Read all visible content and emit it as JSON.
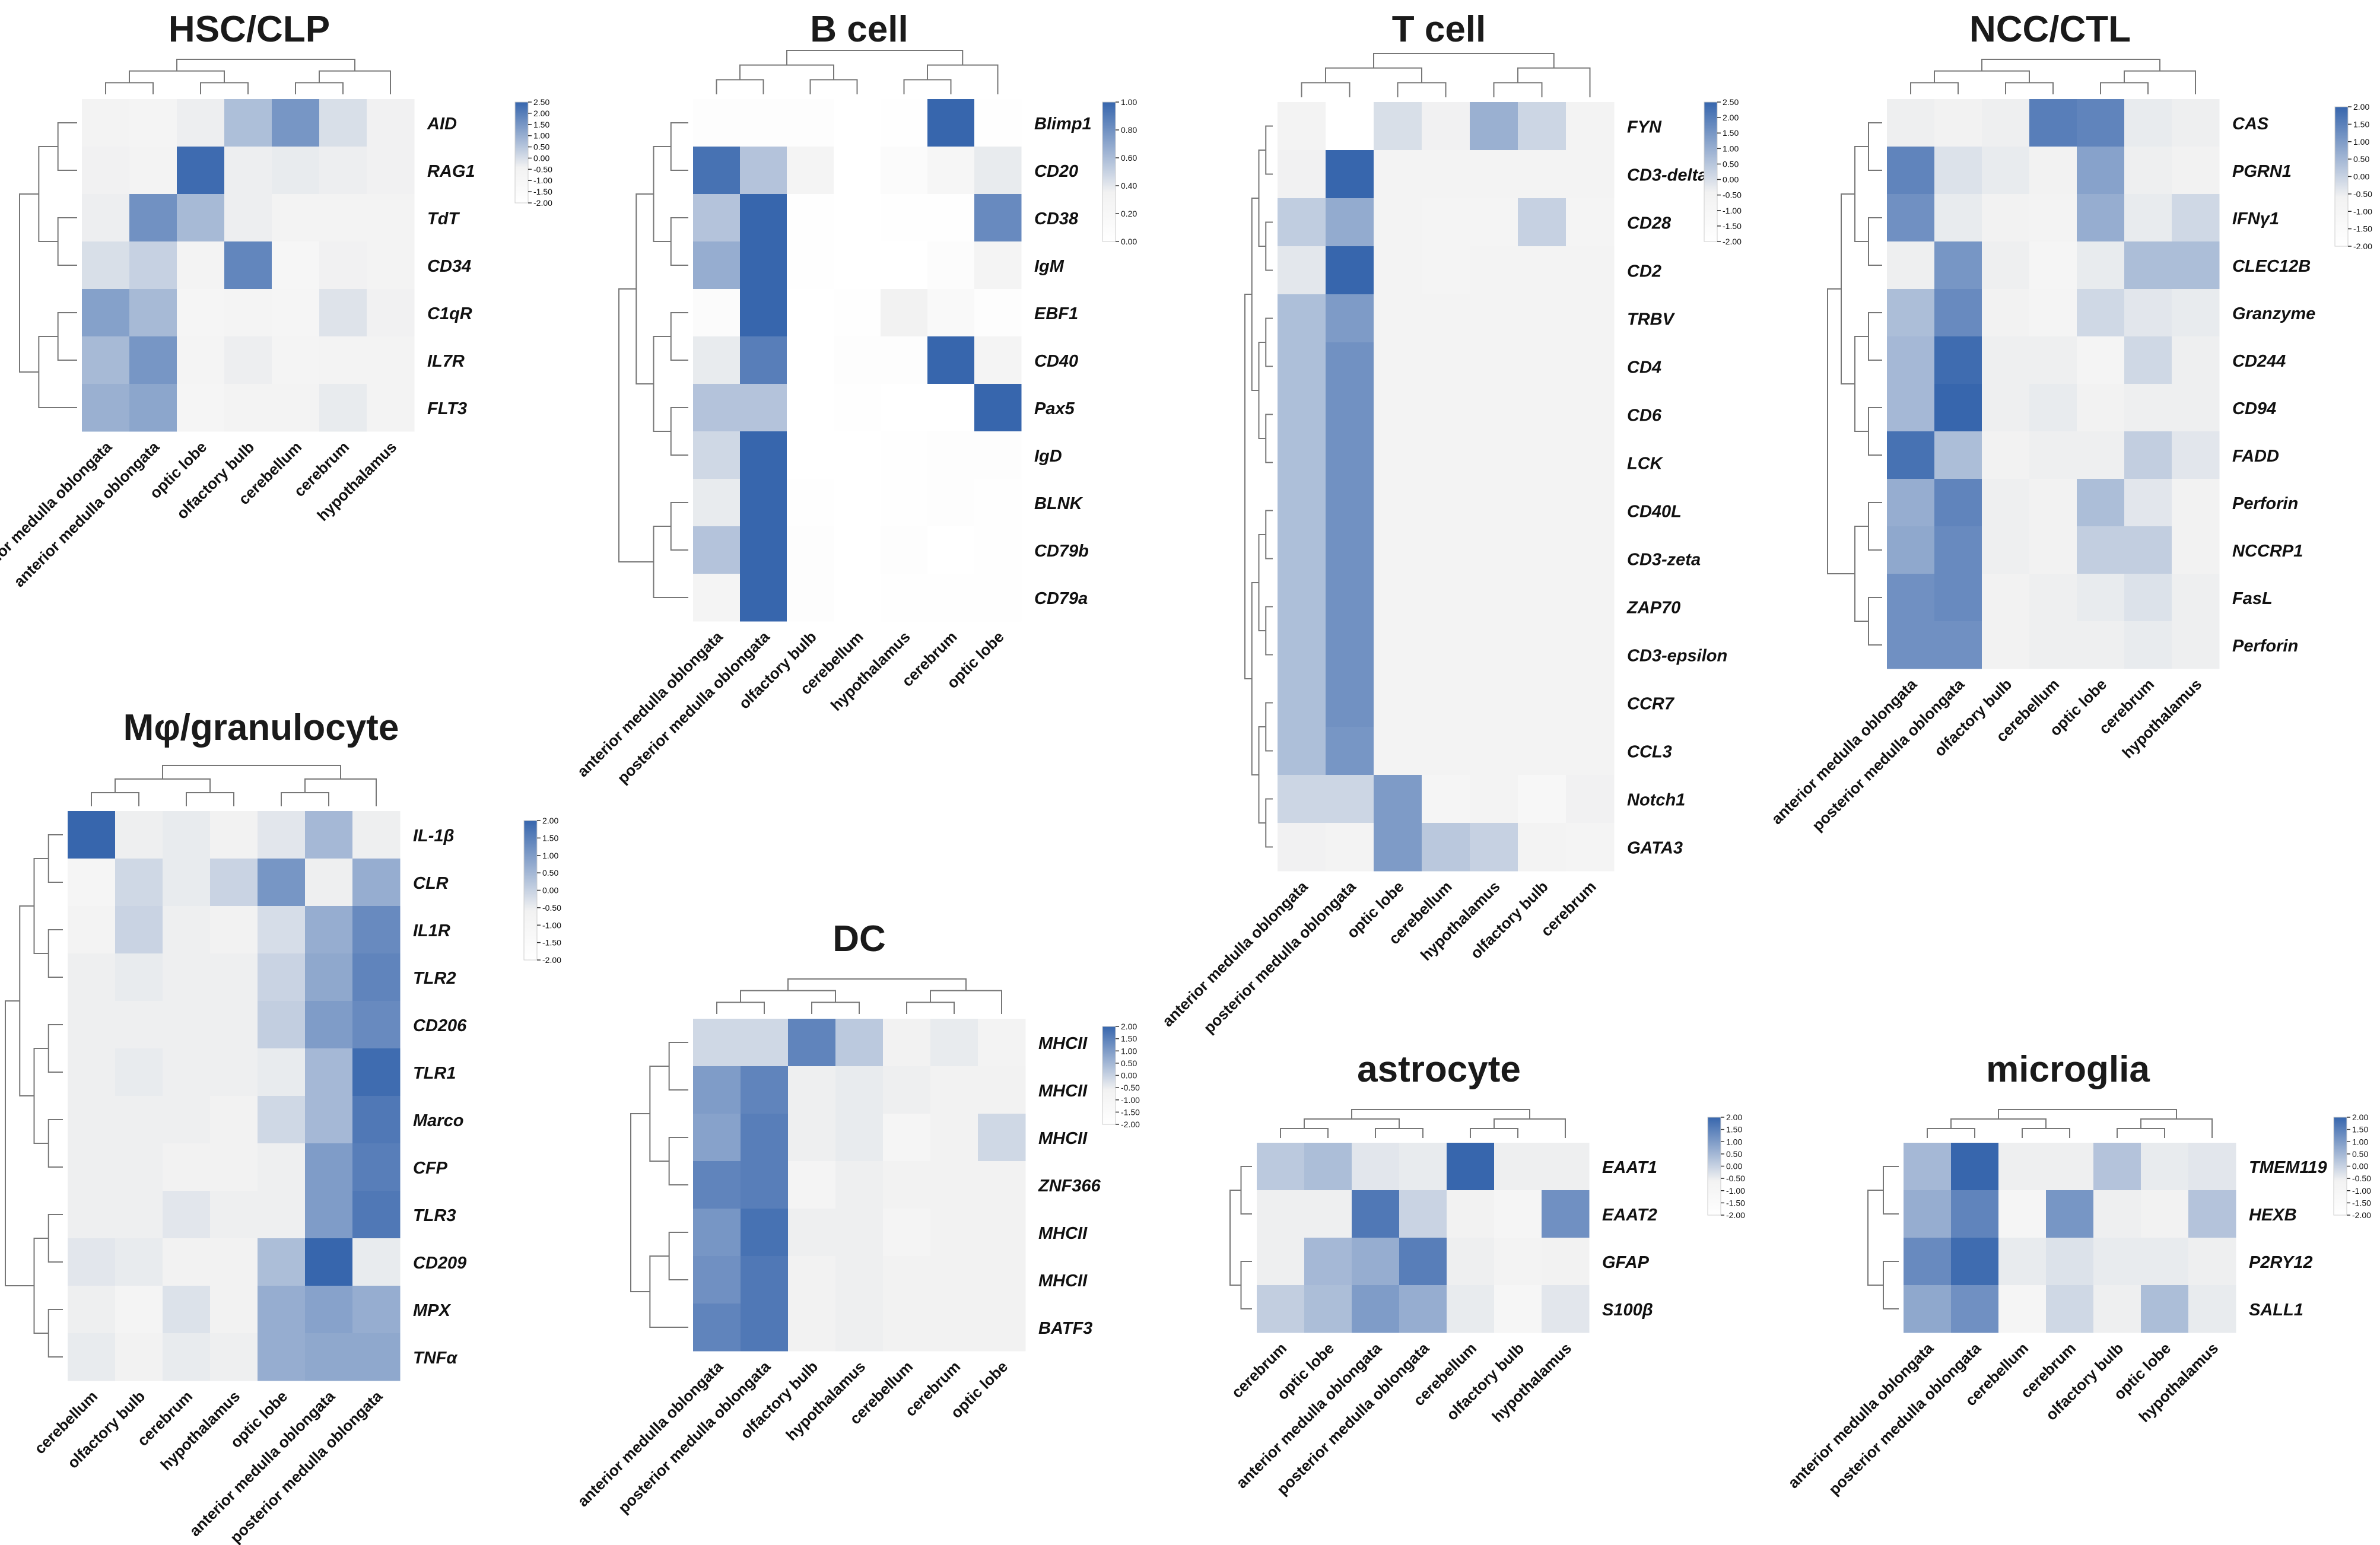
{
  "colors": {
    "low": "#ffffff",
    "mid": "#f2f2f2",
    "high": "#3766ad",
    "dendrogram": "#777777",
    "text": "#111111"
  },
  "chart_data": [
    {
      "type": "heatmap",
      "title": "HSC/CLP",
      "columns": [
        "posterior medulla oblongata",
        "anterior medulla oblongata",
        "optic lobe",
        "olfactory bulb",
        "cerebellum",
        "cerebrum",
        "hypothalamus"
      ],
      "rows": [
        "AID",
        "RAG1",
        "TdT",
        "CD34",
        "C1qR",
        "IL7R",
        "FLT3"
      ],
      "values": [
        [
          -0.5,
          -0.7,
          -0.3,
          0.8,
          1.6,
          0.1,
          -0.4
        ],
        [
          -0.4,
          -0.5,
          2.4,
          -0.3,
          -0.2,
          -0.3,
          -0.4
        ],
        [
          -0.3,
          1.7,
          0.9,
          -0.3,
          -0.5,
          -0.5,
          -0.5
        ],
        [
          0.1,
          0.4,
          -0.6,
          1.9,
          -0.9,
          -0.4,
          -0.5
        ],
        [
          1.4,
          0.9,
          -0.8,
          -0.7,
          -0.8,
          0.0,
          -0.4
        ],
        [
          0.9,
          1.6,
          -0.7,
          -0.3,
          -0.7,
          -0.6,
          -0.5
        ],
        [
          1.1,
          1.3,
          -0.8,
          -0.5,
          -0.6,
          -0.2,
          -0.5
        ]
      ],
      "scale": {
        "min": -2.0,
        "max": 2.5,
        "ticks": [
          "2.50",
          "2.00",
          "1.50",
          "1.00",
          "0.50",
          "0.00",
          "-0.50",
          "-1.00",
          "-1.50",
          "-2.00"
        ]
      }
    },
    {
      "type": "heatmap",
      "title": "B cell",
      "columns": [
        "anterior medulla oblongata",
        "posterior medulla oblongata",
        "olfactory bulb",
        "cerebellum",
        "hypothalamus",
        "cerebrum",
        "optic lobe"
      ],
      "rows": [
        "Blimp1",
        "CD20",
        "CD38",
        "IgM",
        "EBF1",
        "CD40",
        "Pax5",
        "IgD",
        "BLNK",
        "CD79b",
        "CD79a"
      ],
      "values": [
        [
          0.05,
          0.05,
          0.05,
          0.0,
          0.02,
          1.0,
          0.03
        ],
        [
          0.95,
          0.6,
          0.3,
          0.0,
          0.1,
          0.25,
          0.4
        ],
        [
          0.6,
          1.0,
          0.02,
          0.0,
          0.04,
          0.04,
          0.85
        ],
        [
          0.7,
          1.0,
          0.03,
          0.0,
          0.01,
          0.08,
          0.3
        ],
        [
          0.1,
          1.0,
          0.0,
          0.04,
          0.35,
          0.15,
          0.05
        ],
        [
          0.4,
          0.9,
          0.0,
          0.05,
          0.05,
          1.0,
          0.3
        ],
        [
          0.6,
          0.6,
          0.0,
          0.02,
          0.0,
          0.0,
          1.0
        ],
        [
          0.5,
          1.0,
          0.0,
          0.0,
          0.03,
          0.06,
          0.06
        ],
        [
          0.4,
          1.0,
          0.02,
          0.0,
          0.02,
          0.05,
          0.04
        ],
        [
          0.6,
          1.0,
          0.05,
          0.0,
          0.05,
          0.0,
          0.03
        ],
        [
          0.3,
          1.0,
          0.05,
          0.0,
          0.04,
          0.03,
          0.02
        ]
      ],
      "scale": {
        "min": 0.0,
        "max": 1.0,
        "ticks": [
          "1.00",
          "0.80",
          "0.60",
          "0.40",
          "0.20",
          "0.00"
        ]
      }
    },
    {
      "type": "heatmap",
      "title": "T cell",
      "columns": [
        "anterior medulla oblongata",
        "posterior medulla oblongata",
        "optic lobe",
        "cerebellum",
        "hypothalamus",
        "olfactory bulb",
        "cerebrum"
      ],
      "rows": [
        "FYN",
        "CD3-delta",
        "CD28",
        "CD2",
        "TRBV",
        "CD4",
        "CD6",
        "LCK",
        "CD40L",
        "CD3-zeta",
        "ZAP70",
        "CD3-epsilon",
        "CCR7",
        "CCL3",
        "Notch1",
        "GATA3"
      ],
      "values": [
        [
          -0.6,
          -2.0,
          0.1,
          -0.4,
          1.1,
          0.3,
          -0.6
        ],
        [
          -0.4,
          2.5,
          -0.5,
          -0.5,
          -0.5,
          -0.5,
          -0.6
        ],
        [
          0.5,
          1.2,
          -0.5,
          -0.7,
          -0.7,
          0.4,
          -0.7
        ],
        [
          -0.1,
          2.5,
          -0.5,
          -0.7,
          -0.6,
          -0.6,
          -0.6
        ],
        [
          0.8,
          1.5,
          -0.6,
          -0.6,
          -0.6,
          -0.6,
          -0.6
        ],
        [
          0.8,
          1.7,
          -0.6,
          -0.6,
          -0.6,
          -0.6,
          -0.6
        ],
        [
          0.8,
          1.7,
          -0.6,
          -0.6,
          -0.6,
          -0.6,
          -0.6
        ],
        [
          0.8,
          1.7,
          -0.6,
          -0.6,
          -0.6,
          -0.6,
          -0.6
        ],
        [
          0.8,
          1.7,
          -0.6,
          -0.6,
          -0.6,
          -0.6,
          -0.6
        ],
        [
          0.8,
          1.7,
          -0.6,
          -0.6,
          -0.6,
          -0.6,
          -0.6
        ],
        [
          0.8,
          1.7,
          -0.6,
          -0.6,
          -0.6,
          -0.6,
          -0.6
        ],
        [
          0.8,
          1.7,
          -0.6,
          -0.6,
          -0.6,
          -0.6,
          -0.6
        ],
        [
          0.8,
          1.7,
          -0.6,
          -0.6,
          -0.6,
          -0.6,
          -0.6
        ],
        [
          0.8,
          1.6,
          -0.6,
          -0.6,
          -0.6,
          -0.6,
          -0.6
        ],
        [
          0.3,
          0.3,
          1.5,
          -0.8,
          -0.6,
          -1.0,
          -0.4
        ],
        [
          -0.4,
          -0.6,
          1.5,
          0.6,
          0.4,
          -0.6,
          -0.7
        ]
      ],
      "scale": {
        "min": -2.0,
        "max": 2.5,
        "ticks": [
          "2.50",
          "2.00",
          "1.50",
          "1.00",
          "0.50",
          "0.00",
          "-0.50",
          "-1.00",
          "-1.50",
          "-2.00"
        ]
      }
    },
    {
      "type": "heatmap",
      "title": "NCC/CTL",
      "columns": [
        "anterior medulla oblongata",
        "posterior medulla oblongata",
        "olfactory bulb",
        "cerebellum",
        "optic lobe",
        "cerebrum",
        "hypothalamus"
      ],
      "rows": [
        "CAS",
        "PGRN1",
        "IFNγ1",
        "CLEC12B",
        "Granzyme",
        "CD244",
        "CD94",
        "FADD",
        "Perforin",
        "NCCRP1",
        "FasL",
        "Perforin"
      ],
      "values": [
        [
          -0.5,
          -0.6,
          -0.5,
          1.6,
          1.5,
          -0.4,
          -0.5
        ],
        [
          1.5,
          -0.2,
          -0.4,
          -0.6,
          1.0,
          -0.5,
          -0.6
        ],
        [
          1.3,
          -0.4,
          -0.6,
          -0.7,
          0.8,
          -0.4,
          0.0
        ],
        [
          -0.5,
          1.2,
          -0.5,
          -0.9,
          -0.4,
          0.5,
          0.5
        ],
        [
          0.5,
          1.4,
          -0.6,
          -0.8,
          0.0,
          -0.3,
          -0.4
        ],
        [
          0.6,
          1.9,
          -0.5,
          -0.5,
          -0.8,
          0.0,
          -0.5
        ],
        [
          0.6,
          2.0,
          -0.5,
          -0.4,
          -0.6,
          -0.5,
          -0.5
        ],
        [
          1.8,
          0.5,
          -0.6,
          -0.5,
          -0.5,
          0.2,
          -0.3
        ],
        [
          0.8,
          1.5,
          -0.5,
          -0.6,
          0.5,
          -0.3,
          -0.6
        ],
        [
          0.9,
          1.4,
          -0.5,
          -0.6,
          0.2,
          0.2,
          -0.6
        ],
        [
          1.3,
          1.4,
          -0.6,
          -0.5,
          -0.4,
          -0.2,
          -0.5
        ],
        [
          1.3,
          1.3,
          -0.6,
          -0.5,
          -0.5,
          -0.4,
          -0.5
        ]
      ],
      "scale": {
        "min": -2.0,
        "max": 2.0,
        "ticks": [
          "2.00",
          "1.50",
          "1.00",
          "0.50",
          "0.00",
          "-0.50",
          "-1.00",
          "-1.50",
          "-2.00"
        ]
      }
    },
    {
      "type": "heatmap",
      "title": "Mφ/granulocyte",
      "columns": [
        "cerebellum",
        "olfactory bulb",
        "cerebrum",
        "hypothalamus",
        "optic lobe",
        "anterior medulla oblongata",
        "posterior medulla oblongata"
      ],
      "rows": [
        "IL-1β",
        "CLR",
        "IL1R",
        "TLR2",
        "CD206",
        "TLR1",
        "Marco",
        "CFP",
        "TLR3",
        "CD209",
        "MPX",
        "TNFα"
      ],
      "values": [
        [
          2.0,
          -0.5,
          -0.4,
          -0.6,
          -0.3,
          0.6,
          -0.5
        ],
        [
          -0.9,
          0.0,
          -0.4,
          0.1,
          1.2,
          -0.5,
          0.8
        ],
        [
          -0.7,
          0.1,
          -0.5,
          -0.6,
          -0.1,
          0.8,
          1.4
        ],
        [
          -0.5,
          -0.4,
          -0.5,
          -0.5,
          0.1,
          0.9,
          1.5
        ],
        [
          -0.5,
          -0.5,
          -0.5,
          -0.5,
          0.2,
          1.1,
          1.4
        ],
        [
          -0.5,
          -0.4,
          -0.5,
          -0.5,
          -0.4,
          0.6,
          1.9
        ],
        [
          -0.5,
          -0.5,
          -0.5,
          -0.6,
          0.0,
          0.6,
          1.7
        ],
        [
          -0.5,
          -0.5,
          -0.6,
          -0.6,
          -0.5,
          1.1,
          1.6
        ],
        [
          -0.5,
          -0.5,
          -0.3,
          -0.5,
          -0.5,
          1.1,
          1.7
        ],
        [
          -0.3,
          -0.4,
          -0.6,
          -0.6,
          0.5,
          2.0,
          -0.4
        ],
        [
          -0.5,
          -0.8,
          -0.2,
          -0.6,
          0.8,
          1.0,
          0.8
        ],
        [
          -0.4,
          -0.6,
          -0.4,
          -0.5,
          0.8,
          0.9,
          0.9
        ]
      ],
      "scale": {
        "min": -2.0,
        "max": 2.0,
        "ticks": [
          "2.00",
          "1.50",
          "1.00",
          "0.50",
          "0.00",
          "-0.50",
          "-1.00",
          "-1.50",
          "-2.00"
        ]
      }
    },
    {
      "type": "heatmap",
      "title": "DC",
      "columns": [
        "anterior medulla oblongata",
        "posterior medulla oblongata",
        "olfactory bulb",
        "hypothalamus",
        "cerebellum",
        "cerebrum",
        "optic lobe"
      ],
      "rows": [
        "MHCII",
        "MHCII",
        "MHCII",
        "ZNF366",
        "MHCII",
        "MHCII",
        "BATF3"
      ],
      "values": [
        [
          0.0,
          0.0,
          1.5,
          0.3,
          -0.6,
          -0.4,
          -0.7
        ],
        [
          1.1,
          1.5,
          -0.5,
          -0.4,
          -0.5,
          -0.6,
          -0.6
        ],
        [
          1.0,
          1.6,
          -0.5,
          -0.4,
          -0.9,
          -0.6,
          0.0
        ],
        [
          1.5,
          1.6,
          -0.8,
          -0.5,
          -0.6,
          -0.6,
          -0.6
        ],
        [
          1.2,
          1.8,
          -0.5,
          -0.5,
          -0.8,
          -0.6,
          -0.6
        ],
        [
          1.3,
          1.7,
          -0.6,
          -0.5,
          -0.6,
          -0.6,
          -0.6
        ],
        [
          1.5,
          1.7,
          -0.6,
          -0.5,
          -0.6,
          -0.6,
          -0.6
        ]
      ],
      "scale": {
        "min": -2.0,
        "max": 2.0,
        "ticks": [
          "2.00",
          "1.50",
          "1.00",
          "0.50",
          "0.00",
          "-0.50",
          "-1.00",
          "-1.50",
          "-2.00"
        ]
      }
    },
    {
      "type": "heatmap",
      "title": "astrocyte",
      "columns": [
        "cerebrum",
        "optic lobe",
        "anterior medulla oblongata",
        "posterior medulla oblongata",
        "cerebellum",
        "olfactory bulb",
        "hypothalamus"
      ],
      "rows": [
        "EAAT1",
        "EAAT2",
        "GFAP",
        "S100β"
      ],
      "values": [
        [
          0.3,
          0.5,
          -0.3,
          -0.4,
          2.0,
          -0.5,
          -0.5
        ],
        [
          -0.5,
          -0.5,
          1.7,
          0.1,
          -0.6,
          -0.9,
          1.3
        ],
        [
          -0.5,
          0.6,
          0.8,
          1.6,
          -0.5,
          -0.7,
          -0.6
        ],
        [
          0.2,
          0.5,
          1.1,
          0.8,
          -0.4,
          -1.0,
          -0.3
        ]
      ],
      "scale": {
        "min": -2.0,
        "max": 2.0,
        "ticks": [
          "2.00",
          "1.50",
          "1.00",
          "0.50",
          "0.00",
          "-0.50",
          "-1.00",
          "-1.50",
          "-2.00"
        ]
      }
    },
    {
      "type": "heatmap",
      "title": "microglia",
      "columns": [
        "anterior medulla oblongata",
        "posterior medulla oblongata",
        "cerebellum",
        "cerebrum",
        "olfactory bulb",
        "optic lobe",
        "hypothalamus"
      ],
      "rows": [
        "TMEM119",
        "HEXB",
        "P2RY12",
        "SALL1"
      ],
      "values": [
        [
          0.6,
          2.0,
          -0.5,
          -0.5,
          0.4,
          -0.4,
          -0.3
        ],
        [
          0.8,
          1.5,
          -0.9,
          1.2,
          -0.5,
          -0.6,
          0.4
        ],
        [
          1.4,
          1.9,
          -0.4,
          -0.2,
          -0.4,
          -0.4,
          -0.5
        ],
        [
          0.9,
          1.3,
          -0.9,
          0.0,
          -0.5,
          0.5,
          -0.4
        ]
      ],
      "scale": {
        "min": -2.0,
        "max": 2.0,
        "ticks": [
          "2.00",
          "1.50",
          "1.00",
          "0.50",
          "0.00",
          "-0.50",
          "-1.00",
          "-1.50",
          "-2.00"
        ]
      }
    }
  ]
}
